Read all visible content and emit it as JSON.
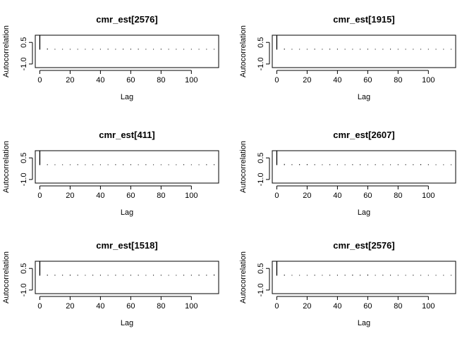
{
  "figure": {
    "type": "acf-grid",
    "layout": "3 rows x 2 columns"
  },
  "chart_data": [
    {
      "type": "bar",
      "title": "cmr_est[2576]",
      "xlabel": "Lag",
      "ylabel": "Autocorrelation",
      "xlim": [
        -3,
        118
      ],
      "ylim": [
        -1.25,
        1.0
      ],
      "x_ticks": [
        0,
        20,
        40,
        60,
        80,
        100
      ],
      "y_ticks": [
        -1.0,
        0.5
      ],
      "y_tick_labels": [
        "-1.0",
        "0.5"
      ],
      "lags": [
        0,
        5,
        10,
        15,
        20,
        25,
        30,
        35,
        40,
        45,
        50,
        55,
        60,
        65,
        70,
        75,
        80,
        85,
        90,
        95,
        100,
        105,
        110,
        115
      ],
      "values": [
        1.0,
        0.08,
        0.05,
        0.05,
        0.04,
        0.05,
        0.05,
        0.04,
        0.05,
        0.06,
        0.05,
        0.06,
        0.06,
        0.06,
        0.05,
        0.05,
        0.06,
        0.05,
        0.05,
        0.04,
        0.05,
        0.05,
        0.05,
        0.05
      ]
    },
    {
      "type": "bar",
      "title": "cmr_est[1915]",
      "xlabel": "Lag",
      "ylabel": "Autocorrelation",
      "xlim": [
        -3,
        118
      ],
      "ylim": [
        -1.25,
        1.0
      ],
      "x_ticks": [
        0,
        20,
        40,
        60,
        80,
        100
      ],
      "y_ticks": [
        -1.0,
        0.5
      ],
      "y_tick_labels": [
        "-1.0",
        "0.5"
      ],
      "lags": [
        0,
        5,
        10,
        15,
        20,
        25,
        30,
        35,
        40,
        45,
        50,
        55,
        60,
        65,
        70,
        75,
        80,
        85,
        90,
        95,
        100,
        105,
        110,
        115
      ],
      "values": [
        1.0,
        0.07,
        0.05,
        0.04,
        0.05,
        0.06,
        0.05,
        0.06,
        0.06,
        0.05,
        0.05,
        0.05,
        0.06,
        0.05,
        0.05,
        0.06,
        0.05,
        0.05,
        0.05,
        0.05,
        0.05,
        0.05,
        0.05,
        0.04
      ]
    },
    {
      "type": "bar",
      "title": "cmr_est[411]",
      "xlabel": "Lag",
      "ylabel": "Autocorrelation",
      "xlim": [
        -3,
        118
      ],
      "ylim": [
        -1.25,
        1.0
      ],
      "x_ticks": [
        0,
        20,
        40,
        60,
        80,
        100
      ],
      "y_ticks": [
        -1.0,
        0.5
      ],
      "y_tick_labels": [
        "-1.0",
        "0.5"
      ],
      "lags": [
        0,
        5,
        10,
        15,
        20,
        25,
        30,
        35,
        40,
        45,
        50,
        55,
        60,
        65,
        70,
        75,
        80,
        85,
        90,
        95,
        100,
        105,
        110,
        115
      ],
      "values": [
        1.0,
        0.06,
        0.05,
        0.05,
        0.05,
        0.06,
        0.05,
        0.05,
        0.05,
        0.05,
        0.06,
        0.06,
        0.06,
        0.05,
        0.06,
        0.05,
        0.05,
        0.05,
        0.05,
        0.06,
        0.05,
        0.05,
        0.06,
        0.06
      ]
    },
    {
      "type": "bar",
      "title": "cmr_est[2607]",
      "xlabel": "Lag",
      "ylabel": "Autocorrelation",
      "xlim": [
        -3,
        118
      ],
      "ylim": [
        -1.25,
        1.0
      ],
      "x_ticks": [
        0,
        20,
        40,
        60,
        80,
        100
      ],
      "y_ticks": [
        -1.0,
        0.5
      ],
      "y_tick_labels": [
        "-1.0",
        "0.5"
      ],
      "lags": [
        0,
        5,
        10,
        15,
        20,
        25,
        30,
        35,
        40,
        45,
        50,
        55,
        60,
        65,
        70,
        75,
        80,
        85,
        90,
        95,
        100,
        105,
        110,
        115
      ],
      "values": [
        1.0,
        0.08,
        0.06,
        0.07,
        0.07,
        0.06,
        0.05,
        0.06,
        0.05,
        0.05,
        0.06,
        0.06,
        0.05,
        0.06,
        0.05,
        0.05,
        0.06,
        0.06,
        0.06,
        0.07,
        0.06,
        0.05,
        0.05,
        0.05
      ]
    },
    {
      "type": "bar",
      "title": "cmr_est[1518]",
      "xlabel": "Lag",
      "ylabel": "Autocorrelation",
      "xlim": [
        -3,
        118
      ],
      "ylim": [
        -1.25,
        1.0
      ],
      "x_ticks": [
        0,
        20,
        40,
        60,
        80,
        100
      ],
      "y_ticks": [
        -1.0,
        0.5
      ],
      "y_tick_labels": [
        "-1.0",
        "0.5"
      ],
      "lags": [
        0,
        5,
        10,
        15,
        20,
        25,
        30,
        35,
        40,
        45,
        50,
        55,
        60,
        65,
        70,
        75,
        80,
        85,
        90,
        95,
        100,
        105,
        110,
        115
      ],
      "values": [
        1.0,
        0.07,
        0.06,
        0.06,
        0.07,
        0.06,
        0.05,
        0.06,
        0.06,
        0.05,
        0.06,
        0.05,
        0.06,
        0.06,
        0.05,
        0.06,
        0.06,
        0.05,
        0.05,
        0.06,
        0.06,
        0.07,
        0.06,
        0.08
      ]
    },
    {
      "type": "bar",
      "title": "cmr_est[2576]",
      "xlabel": "Lag",
      "ylabel": "Autocorrelation",
      "xlim": [
        -3,
        118
      ],
      "ylim": [
        -1.25,
        1.0
      ],
      "x_ticks": [
        0,
        20,
        40,
        60,
        80,
        100
      ],
      "y_ticks": [
        -1.0,
        0.5
      ],
      "y_tick_labels": [
        "-1.0",
        "0.5"
      ],
      "lags": [
        0,
        5,
        10,
        15,
        20,
        25,
        30,
        35,
        40,
        45,
        50,
        55,
        60,
        65,
        70,
        75,
        80,
        85,
        90,
        95,
        100,
        105,
        110,
        115
      ],
      "values": [
        1.0,
        0.07,
        0.05,
        0.05,
        0.05,
        0.06,
        0.05,
        0.06,
        0.06,
        0.06,
        0.07,
        0.06,
        0.08,
        0.05,
        0.06,
        0.06,
        0.05,
        0.05,
        0.06,
        0.05,
        0.05,
        0.05,
        0.05,
        0.05
      ]
    }
  ]
}
